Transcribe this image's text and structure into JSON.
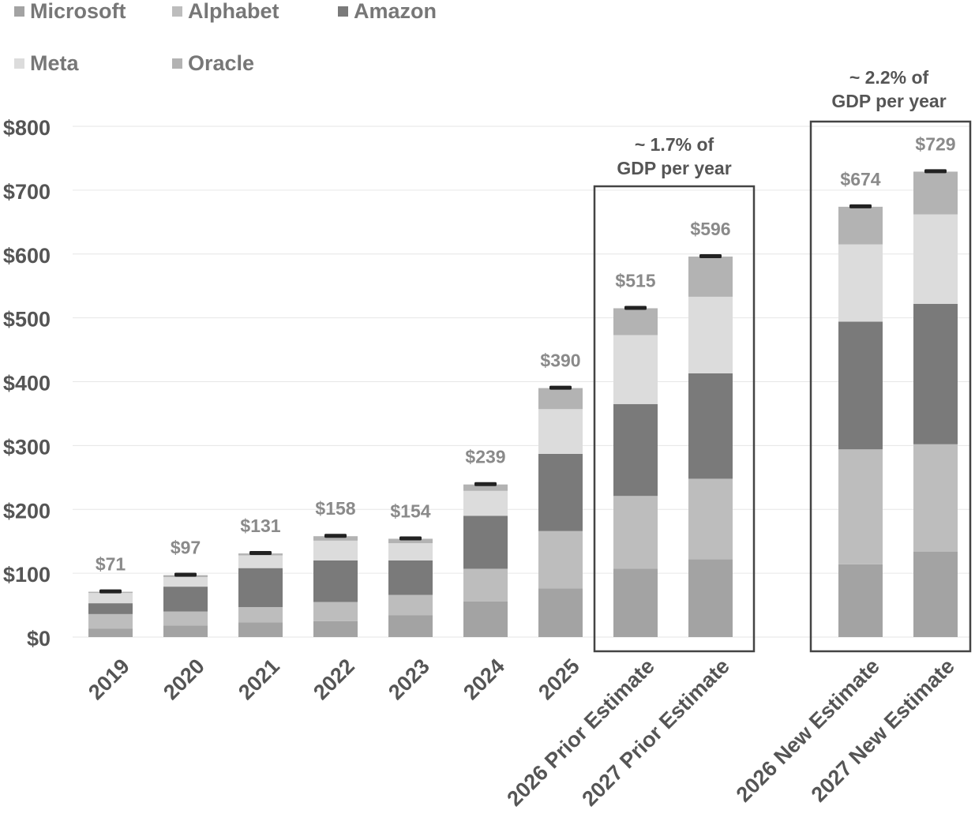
{
  "chart_data": {
    "type": "bar",
    "stacked": true,
    "categories": [
      "2019",
      "2020",
      "2021",
      "2022",
      "2023",
      "2024",
      "2025",
      "2026 Prior Estimate",
      "2027 Prior Estimate",
      "2026 New Estimate",
      "2027 New Estimate"
    ],
    "series": [
      {
        "name": "Microsoft",
        "color": "#a3a3a3",
        "values": [
          13,
          18,
          23,
          25,
          34,
          56,
          76,
          107,
          122,
          114,
          134
        ]
      },
      {
        "name": "Alphabet",
        "color": "#bdbdbd",
        "values": [
          23,
          22,
          24,
          30,
          32,
          51,
          90,
          114,
          126,
          180,
          168
        ]
      },
      {
        "name": "Amazon",
        "color": "#7a7a7a",
        "values": [
          17,
          39,
          61,
          65,
          54,
          83,
          121,
          144,
          165,
          200,
          220
        ]
      },
      {
        "name": "Meta",
        "color": "#dcdcdc",
        "values": [
          16,
          15,
          20,
          31,
          27,
          39,
          70,
          108,
          120,
          121,
          140
        ]
      },
      {
        "name": "Oracle",
        "color": "#b3b3b3",
        "values": [
          2,
          3,
          3,
          7,
          7,
          10,
          33,
          42,
          63,
          59,
          67
        ]
      }
    ],
    "totals": [
      71,
      97,
      131,
      158,
      154,
      239,
      390,
      515,
      596,
      674,
      729
    ],
    "total_labels": [
      "$71",
      "$97",
      "$131",
      "$158",
      "$154",
      "$239",
      "$390",
      "$515",
      "$596",
      "$674",
      "$729"
    ],
    "ylim": [
      0,
      800
    ],
    "y_ticks": [
      0,
      100,
      200,
      300,
      400,
      500,
      600,
      700,
      800
    ],
    "y_tick_labels": [
      "$0",
      "$100",
      "$200",
      "$300",
      "$400",
      "$500",
      "$600",
      "$700",
      "$800"
    ],
    "grid": true,
    "legend_position": "top-left",
    "annotations": [
      {
        "text_lines": [
          "~ 1.7% of",
          "GDP per year"
        ],
        "bracket_categories": [
          "2026 Prior Estimate",
          "2027 Prior Estimate"
        ]
      },
      {
        "text_lines": [
          "~ 2.2% of",
          "GDP per year"
        ],
        "bracket_categories": [
          "2026 New Estimate",
          "2027 New Estimate"
        ]
      }
    ],
    "title": "",
    "xlabel": "",
    "ylabel": ""
  },
  "colors": {
    "axis_text": "#555555",
    "total_label": "#8a8a8a",
    "grid": "#e6e6e6",
    "marker": "#222222",
    "box": "#444444"
  }
}
